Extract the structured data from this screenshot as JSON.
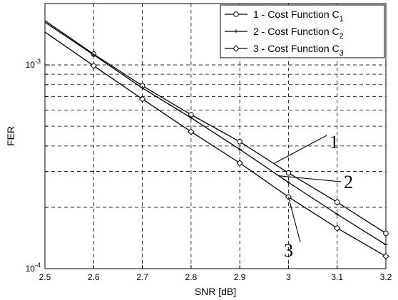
{
  "chart_data": {
    "type": "line",
    "xlabel": "SNR [dB]",
    "ylabel": "FER",
    "yscale": "log",
    "xlim": [
      2.5,
      3.2
    ],
    "ylim": [
      0.0001,
      0.002
    ],
    "grid": true,
    "legend_position": "top-right",
    "x_ticks": [
      2.5,
      2.6,
      2.7,
      2.8,
      2.9,
      3.0,
      3.1,
      3.2
    ],
    "x_tick_labels": [
      "2.5",
      "2.6",
      "2.7",
      "2.8",
      "2.9",
      "3",
      "3.1",
      "3.2"
    ],
    "y_major_ticks": [
      {
        "value": 0.0001,
        "base": "10",
        "exp": "-4"
      },
      {
        "value": 0.001,
        "base": "10",
        "exp": "-3"
      }
    ],
    "x": [
      2.5,
      2.6,
      2.7,
      2.8,
      2.9,
      3.0,
      3.1,
      3.2
    ],
    "series": [
      {
        "name": "1 - Cost Function C",
        "subscript": "1",
        "marker": "circle",
        "values": [
          0.00165,
          0.00113,
          0.00079,
          0.00057,
          0.00042,
          0.000295,
          0.000212,
          0.000149
        ]
      },
      {
        "name": "2 - Cost Function C",
        "subscript": "2",
        "marker": "star",
        "values": [
          0.00162,
          0.00112,
          0.00077,
          0.00055,
          0.000385,
          0.000265,
          0.000185,
          0.000131
        ]
      },
      {
        "name": "3 - Cost Function C",
        "subscript": "3",
        "marker": "diamond",
        "values": [
          0.00145,
          0.00099,
          0.00068,
          0.00047,
          0.00033,
          0.000225,
          0.000158,
          0.000115
        ]
      }
    ],
    "annotations": [
      {
        "text": "1",
        "target_series": 0,
        "target_x": 2.97
      },
      {
        "text": "2",
        "target_series": 1,
        "target_x": 2.98
      },
      {
        "text": "3",
        "target_series": 2,
        "target_x": 3.0
      }
    ]
  }
}
